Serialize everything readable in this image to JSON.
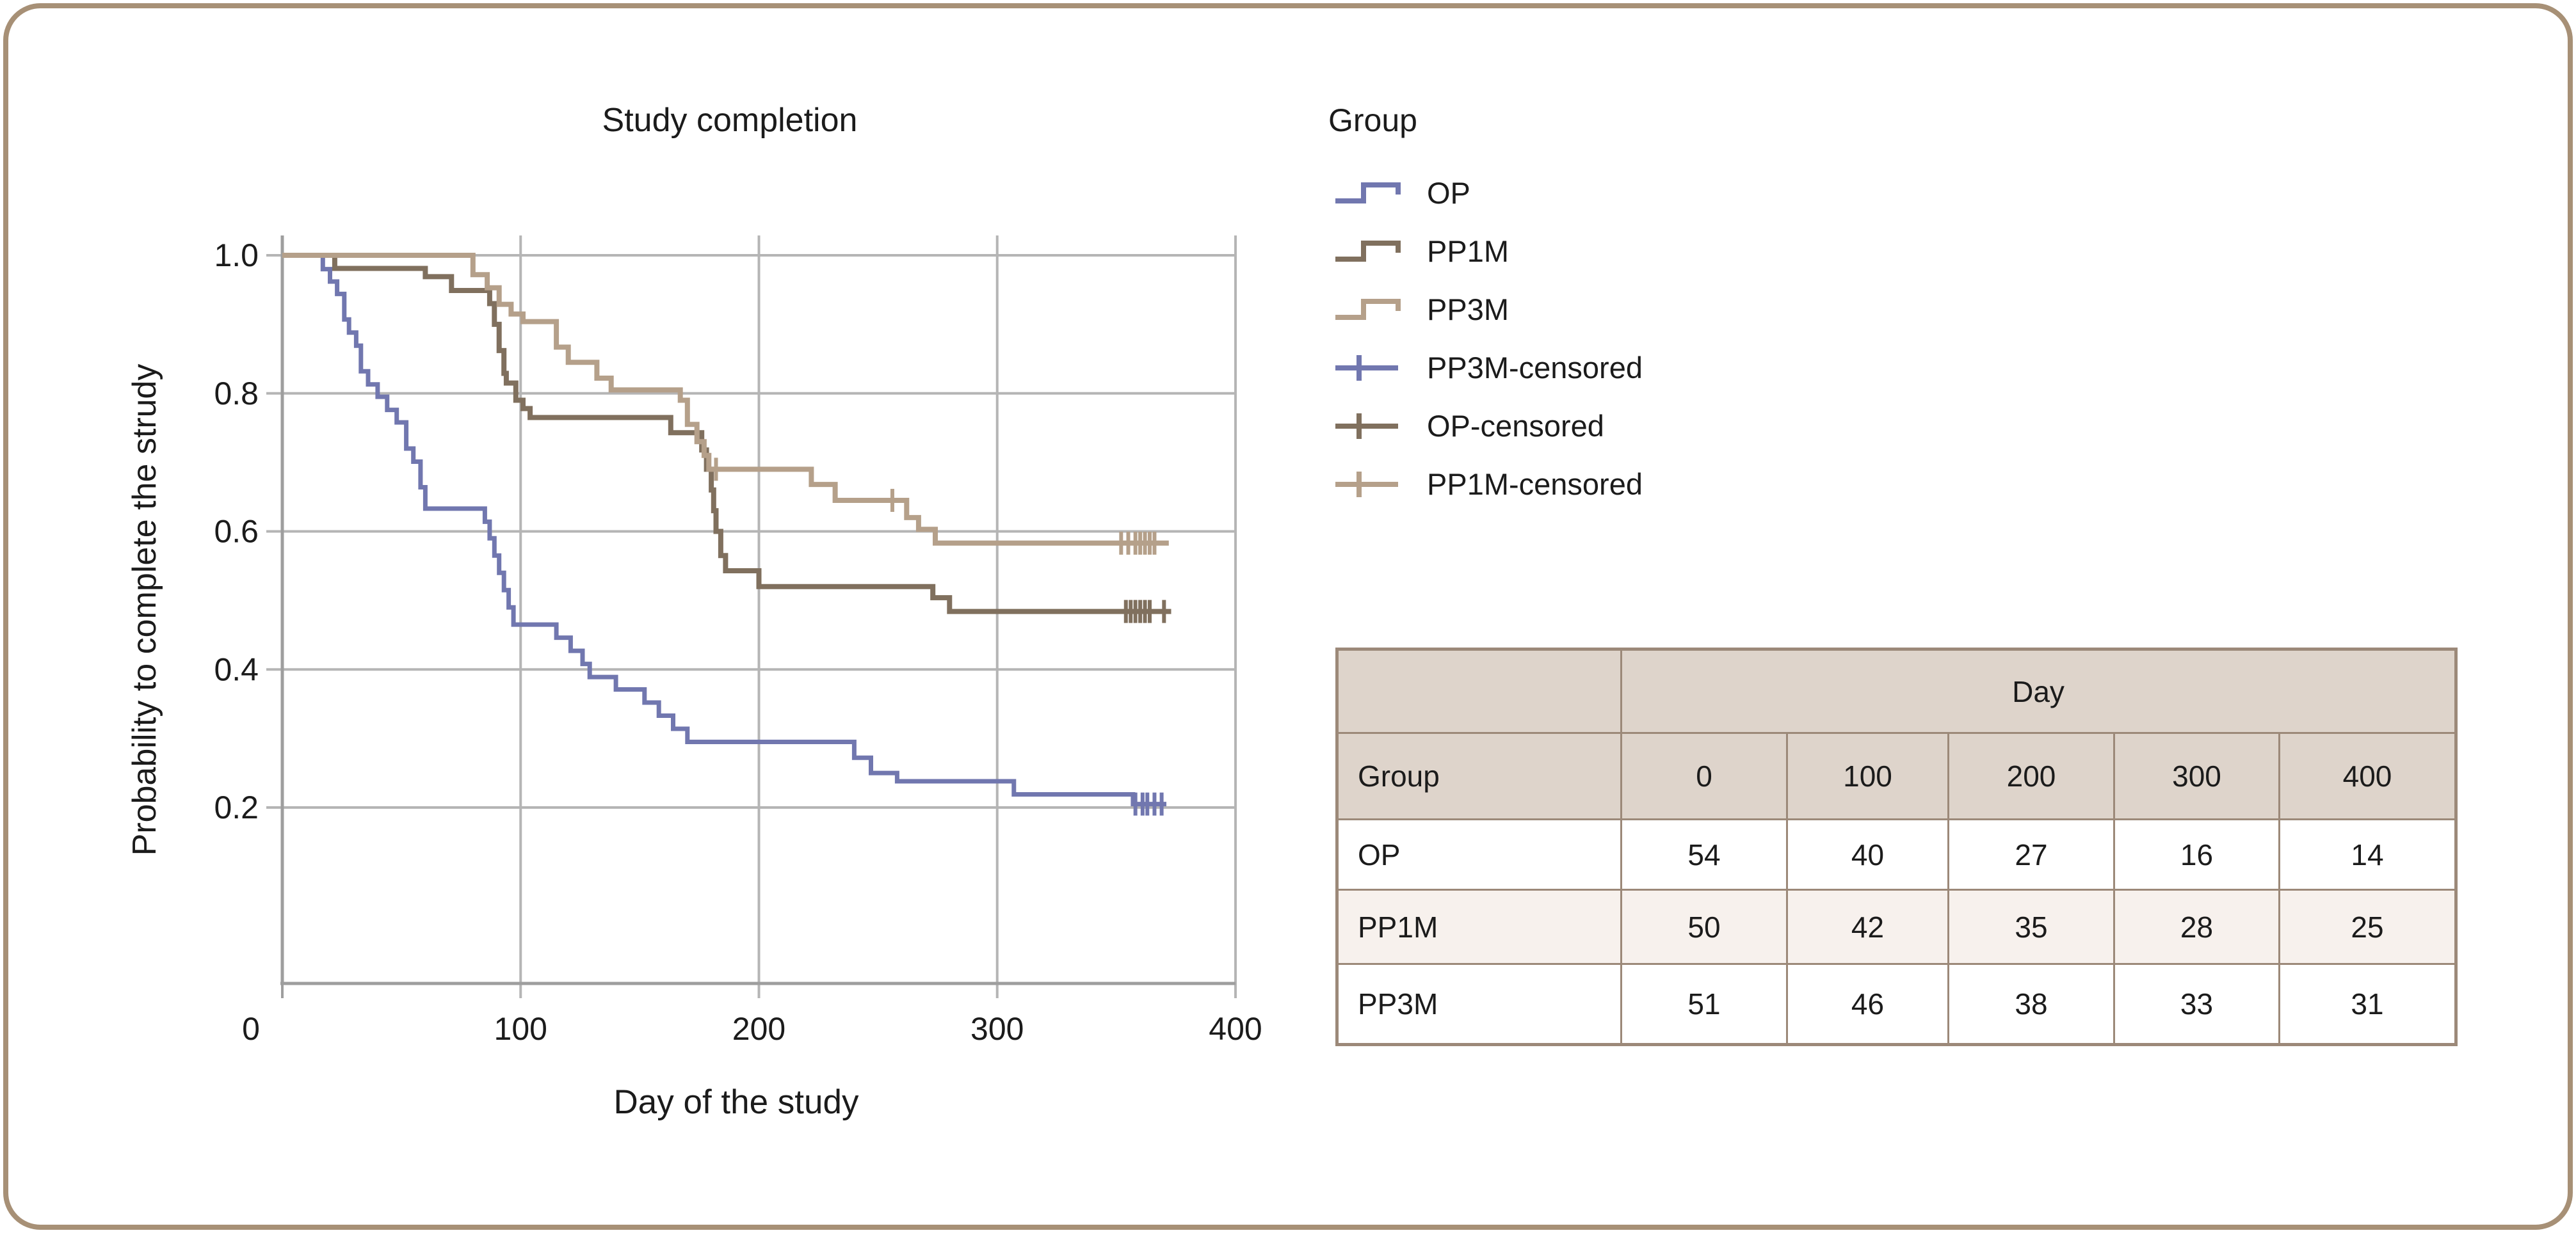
{
  "chart_data": {
    "type": "step",
    "title": "Study completion",
    "xlabel": "Day of the study",
    "ylabel": "Probability to complete the strudy",
    "xlim": [
      0,
      400
    ],
    "ylim": [
      0,
      1.05
    ],
    "grid": true,
    "x_ticks": [
      0,
      100,
      200,
      300,
      400
    ],
    "y_ticks": [
      1.0,
      0.8,
      0.6,
      0.4,
      0.2
    ],
    "style": {
      "grid": "#b5b5b5",
      "axis": "#9e9e9e"
    },
    "series": [
      {
        "name": "OP",
        "color": "#7177af",
        "width": 7,
        "start": 1.0,
        "end": 371,
        "drops": [
          [
            17,
            0.98
          ],
          [
            20,
            0.962
          ],
          [
            23,
            0.944
          ],
          [
            26,
            0.907
          ],
          [
            28,
            0.888
          ],
          [
            31,
            0.869
          ],
          [
            33,
            0.832
          ],
          [
            36,
            0.813
          ],
          [
            40,
            0.795
          ],
          [
            44,
            0.776
          ],
          [
            48,
            0.758
          ],
          [
            52,
            0.72
          ],
          [
            55,
            0.701
          ],
          [
            58,
            0.664
          ],
          [
            60,
            0.633
          ],
          [
            85,
            0.614
          ],
          [
            87,
            0.59
          ],
          [
            89,
            0.565
          ],
          [
            91,
            0.54
          ],
          [
            93,
            0.515
          ],
          [
            95,
            0.49
          ],
          [
            97,
            0.465
          ],
          [
            115,
            0.446
          ],
          [
            121,
            0.427
          ],
          [
            126,
            0.408
          ],
          [
            129,
            0.389
          ],
          [
            140,
            0.371
          ],
          [
            152,
            0.352
          ],
          [
            158,
            0.333
          ],
          [
            164,
            0.314
          ],
          [
            170,
            0.295
          ],
          [
            240,
            0.272
          ],
          [
            247,
            0.25
          ],
          [
            258,
            0.238
          ],
          [
            307,
            0.219
          ],
          [
            357,
            0.205
          ]
        ],
        "censored": [
          [
            358,
            0.205
          ],
          [
            361,
            0.205
          ],
          [
            363,
            0.205
          ],
          [
            366,
            0.205
          ],
          [
            369,
            0.205
          ]
        ]
      },
      {
        "name": "PP1M",
        "color": "#80705e",
        "width": 8,
        "start": 1.0,
        "end": 373,
        "drops": [
          [
            22,
            0.981
          ],
          [
            60,
            0.969
          ],
          [
            71,
            0.949
          ],
          [
            87,
            0.93
          ],
          [
            89,
            0.9
          ],
          [
            91,
            0.862
          ],
          [
            93,
            0.829
          ],
          [
            94,
            0.815
          ],
          [
            98,
            0.79
          ],
          [
            101,
            0.778
          ],
          [
            104,
            0.765
          ],
          [
            163,
            0.743
          ],
          [
            176,
            0.718
          ],
          [
            178,
            0.69
          ],
          [
            180,
            0.66
          ],
          [
            181,
            0.63
          ],
          [
            182,
            0.6
          ],
          [
            184,
            0.565
          ],
          [
            186,
            0.543
          ],
          [
            200,
            0.52
          ],
          [
            273,
            0.504
          ],
          [
            280,
            0.484
          ]
        ],
        "censored": [
          [
            354,
            0.484
          ],
          [
            356,
            0.484
          ],
          [
            358,
            0.484
          ],
          [
            360,
            0.484
          ],
          [
            362,
            0.484
          ],
          [
            364,
            0.484
          ],
          [
            370,
            0.484
          ]
        ]
      },
      {
        "name": "PP3M",
        "color": "#b5a08a",
        "width": 8,
        "start": 1.0,
        "end": 372,
        "drops": [
          [
            80,
            0.972
          ],
          [
            86,
            0.953
          ],
          [
            91,
            0.929
          ],
          [
            96,
            0.915
          ],
          [
            101,
            0.904
          ],
          [
            115,
            0.867
          ],
          [
            120,
            0.845
          ],
          [
            132,
            0.822
          ],
          [
            138,
            0.805
          ],
          [
            167,
            0.79
          ],
          [
            170,
            0.755
          ],
          [
            174,
            0.73
          ],
          [
            177,
            0.71
          ],
          [
            179,
            0.69
          ],
          [
            222,
            0.668
          ],
          [
            232,
            0.645
          ],
          [
            262,
            0.62
          ],
          [
            267,
            0.603
          ],
          [
            274,
            0.583
          ]
        ],
        "censored": [
          [
            182,
            0.69
          ],
          [
            256,
            0.645
          ],
          [
            352,
            0.583
          ],
          [
            355,
            0.583
          ],
          [
            358,
            0.583
          ],
          [
            360,
            0.583
          ],
          [
            362,
            0.583
          ],
          [
            364,
            0.583
          ],
          [
            366,
            0.583
          ]
        ]
      }
    ],
    "legend": {
      "title": "Group",
      "position": "right-top",
      "entries": [
        {
          "label": "OP",
          "swatch": "step",
          "color": "#7177af"
        },
        {
          "label": "PP1M",
          "swatch": "step",
          "color": "#80705e"
        },
        {
          "label": "PP3M",
          "swatch": "step",
          "color": "#b5a08a"
        },
        {
          "label": "PP3M-censored",
          "swatch": "censor",
          "color": "#7177af"
        },
        {
          "label": "OP-censored",
          "swatch": "censor",
          "color": "#80705e"
        },
        {
          "label": "PP1M-censored",
          "swatch": "censor",
          "color": "#b5a08a"
        }
      ]
    }
  },
  "table": {
    "day_header": "Day",
    "group_header": "Group",
    "columns": [
      "0",
      "100",
      "200",
      "300",
      "400"
    ],
    "rows": [
      {
        "group": "OP",
        "values": [
          "54",
          "40",
          "27",
          "16",
          "14"
        ]
      },
      {
        "group": "PP1M",
        "values": [
          "50",
          "42",
          "35",
          "28",
          "25"
        ]
      },
      {
        "group": "PP3M",
        "values": [
          "51",
          "46",
          "38",
          "33",
          "31"
        ]
      }
    ]
  },
  "colors": {
    "frame_border": "#a79076",
    "table_border": "#9c8979",
    "table_header_bg": "#ded4cb",
    "table_alt_row_bg": "#f7f1ed",
    "text": "#1b1b1b"
  }
}
